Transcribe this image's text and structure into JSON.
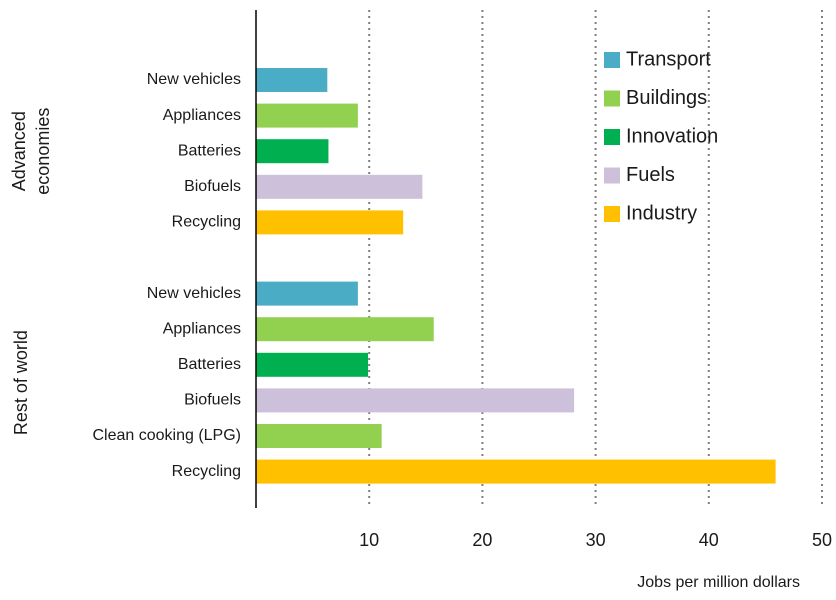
{
  "chart_data": {
    "type": "bar",
    "orientation": "horizontal",
    "x_label": "Jobs per million dollars",
    "xlim": [
      0,
      50
    ],
    "xticks": [
      10,
      20,
      30,
      40,
      50
    ],
    "grid": true,
    "legend_position": "upper right",
    "legend": [
      {
        "name": "Transport",
        "color": "#4bacc6"
      },
      {
        "name": "Buildings",
        "color": "#92d050"
      },
      {
        "name": "Innovation",
        "color": "#00b050"
      },
      {
        "name": "Fuels",
        "color": "#ccc0da"
      },
      {
        "name": "Industry",
        "color": "#ffc000"
      }
    ],
    "groups": [
      {
        "name": "Advanced economies",
        "categories": [
          "New vehicles",
          "Appliances",
          "Batteries",
          "Biofuels",
          "Recycling"
        ],
        "values": [
          6.3,
          9.0,
          6.4,
          14.7,
          13.0
        ],
        "colors": [
          "#4bacc6",
          "#92d050",
          "#00b050",
          "#ccc0da",
          "#ffc000"
        ]
      },
      {
        "name": "Rest of world",
        "categories": [
          "New vehicles",
          "Appliances",
          "Batteries",
          "Biofuels",
          "Clean cooking (LPG)",
          "Recycling"
        ],
        "values": [
          9.0,
          15.7,
          9.9,
          28.1,
          11.1,
          45.9
        ],
        "colors": [
          "#4bacc6",
          "#92d050",
          "#00b050",
          "#ccc0da",
          "#92d050",
          "#ffc000"
        ]
      }
    ]
  }
}
